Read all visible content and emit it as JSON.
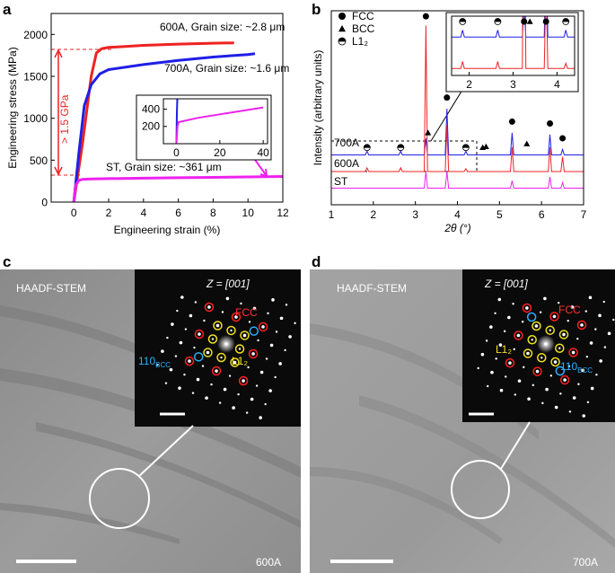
{
  "chart_data": [
    {
      "type": "line",
      "panel_label": "a",
      "xlabel": "Engineering strain (%)",
      "ylabel": "Engineering stress (MPa)",
      "xlim": [
        -1.3,
        12
      ],
      "ylim": [
        0,
        2250
      ],
      "xticks": [
        0,
        2,
        4,
        6,
        8,
        10,
        12
      ],
      "yticks": [
        0,
        500,
        1000,
        1500,
        2000
      ],
      "series": [
        {
          "name": "600A",
          "color": "#ee2222",
          "x": [
            0,
            0.5,
            1.0,
            1.3,
            1.6,
            2,
            4,
            6,
            8,
            9.2
          ],
          "values": [
            0,
            700,
            1500,
            1780,
            1830,
            1845,
            1870,
            1885,
            1895,
            1900
          ]
        },
        {
          "name": "700A",
          "color": "#1f1fe6",
          "x": [
            0,
            0.3,
            0.6,
            1.0,
            1.5,
            2,
            4,
            6,
            8,
            10,
            10.4
          ],
          "values": [
            0,
            600,
            1150,
            1400,
            1530,
            1580,
            1640,
            1690,
            1730,
            1760,
            1770
          ]
        },
        {
          "name": "ST",
          "color": "#ee22ee",
          "x": [
            0,
            0.1,
            0.3,
            0.5,
            1,
            2,
            4,
            6,
            8,
            10,
            12
          ],
          "values": [
            0,
            200,
            260,
            270,
            275,
            280,
            285,
            290,
            295,
            300,
            305
          ]
        }
      ],
      "annotations": [
        "600A, Grain size: ~2.8 μm",
        "700A, Grain size: ~1.6 μm",
        "ST, Grain size: ~361 μm",
        "> 1.5 GPa"
      ],
      "inset": {
        "xlim": [
          -6,
          42
        ],
        "ylim": [
          0,
          520
        ],
        "xticks": [
          0,
          20,
          40
        ],
        "yticks": [
          200,
          400
        ],
        "series": [
          {
            "color": "#1f1fe6",
            "x": [
              0,
              0.2,
              0.4
            ],
            "values": [
              0,
              350,
              520
            ]
          },
          {
            "color": "#ee22ee",
            "x": [
              0,
              0.5,
              1,
              10,
              20,
              30,
              40
            ],
            "values": [
              0,
              200,
              250,
              300,
              340,
              380,
              420
            ]
          }
        ]
      }
    },
    {
      "type": "line",
      "panel_label": "b",
      "xlabel": "2θ (°)",
      "ylabel": "Intensity (arbitrary units)",
      "xlim": [
        1,
        7
      ],
      "ylim": [
        0,
        10.5
      ],
      "xticks": [
        1,
        2,
        3,
        4,
        5,
        6,
        7
      ],
      "series": [
        {
          "name": "700A",
          "color": "#1f1fe6",
          "x": [
            1,
            1.81,
            1.85,
            1.89,
            2.61,
            2.65,
            2.69,
            3.21,
            3.25,
            3.29,
            3.71,
            3.75,
            3.79,
            4.16,
            4.2,
            4.24,
            5.26,
            5.3,
            5.34,
            6.16,
            6.2,
            6.24,
            6.46,
            6.5,
            6.54,
            7
          ],
          "values": [
            2.7,
            2.7,
            2.9,
            2.7,
            2.7,
            2.9,
            2.7,
            2.7,
            3.6,
            2.7,
            2.7,
            5.2,
            2.7,
            2.7,
            2.9,
            2.7,
            2.7,
            3.9,
            2.7,
            2.7,
            3.8,
            2.7,
            2.7,
            3.0,
            2.7,
            2.7
          ]
        },
        {
          "name": "600A",
          "color": "#ee2222",
          "x": [
            1,
            1.81,
            1.85,
            1.89,
            2.61,
            2.65,
            2.69,
            3.21,
            3.25,
            3.29,
            3.71,
            3.75,
            3.79,
            4.16,
            4.2,
            4.24,
            5.26,
            5.3,
            5.34,
            6.16,
            6.2,
            6.24,
            6.46,
            6.5,
            6.54,
            7
          ],
          "values": [
            1.8,
            1.8,
            2.0,
            1.8,
            1.8,
            2.0,
            1.8,
            1.8,
            9.7,
            1.8,
            1.8,
            4.3,
            1.8,
            1.8,
            1.95,
            1.8,
            1.8,
            3.1,
            1.8,
            1.8,
            3.1,
            1.8,
            1.8,
            2.6,
            1.8,
            1.8
          ]
        },
        {
          "name": "ST",
          "color": "#ee22ee",
          "x": [
            1,
            3.21,
            3.25,
            3.29,
            3.71,
            3.75,
            3.79,
            5.26,
            5.3,
            5.34,
            6.16,
            6.2,
            6.24,
            6.46,
            6.5,
            6.54,
            7
          ],
          "values": [
            0.9,
            0.9,
            1.8,
            0.9,
            0.9,
            1.8,
            0.9,
            0.9,
            1.3,
            0.9,
            0.9,
            1.5,
            0.9,
            0.9,
            1.2,
            0.9,
            0.9
          ]
        }
      ],
      "markers": [
        {
          "name": "FCC",
          "symbol": "circle",
          "x": [
            3.25,
            3.75,
            5.3,
            6.2,
            6.5
          ],
          "values": [
            10.2,
            5.8,
            4.5,
            4.4,
            3.6
          ]
        },
        {
          "name": "BCC",
          "symbol": "triangle",
          "x": [
            3.3,
            4.6,
            4.68,
            5.65
          ],
          "values": [
            3.9,
            3.1,
            3.15,
            3.3
          ]
        },
        {
          "name": "L1₂",
          "symbol": "half",
          "x": [
            1.85,
            2.65,
            4.2
          ],
          "values": [
            3.1,
            3.1,
            3.1
          ]
        }
      ],
      "inset": {
        "xlim": [
          1.6,
          4.4
        ],
        "ylim": [
          1.6,
          3.3
        ],
        "xticks": [
          2,
          3,
          4
        ]
      }
    }
  ],
  "panels": [
    {
      "label": "c",
      "image_label": "HAADF-STEM",
      "zone": "Z = [001]",
      "fcc": "FCC",
      "bcc": {
        "main": "110",
        "sub": "BCC"
      },
      "l12": "L1₂",
      "sample": "600A"
    },
    {
      "label": "d",
      "image_label": "HAADF-STEM",
      "zone": "Z = [001]",
      "fcc": "FCC",
      "bcc": {
        "main": "110",
        "sub": "BCC"
      },
      "l12": "L1₂",
      "sample": "700A"
    }
  ]
}
